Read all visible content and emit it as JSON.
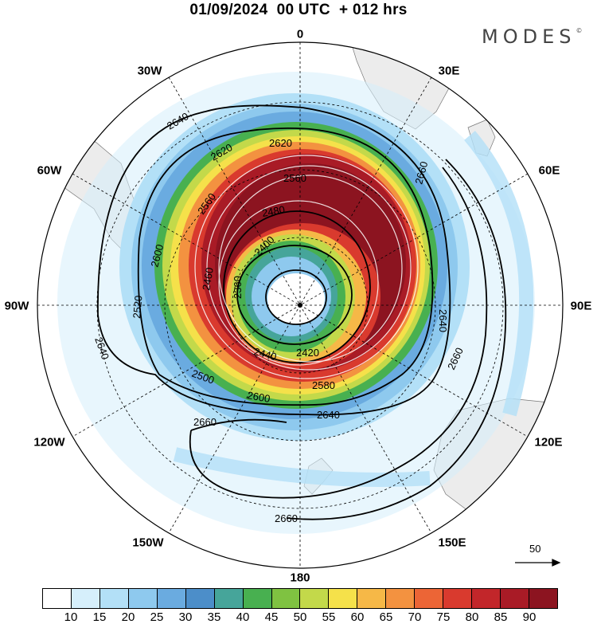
{
  "title": "01/09/2024  00 UTC  + 012 hrs",
  "brand": "MODES",
  "brand_mark": "©",
  "longitude_labels": [
    {
      "text": "0",
      "lon": 0
    },
    {
      "text": "30E",
      "lon": 30
    },
    {
      "text": "60E",
      "lon": 60
    },
    {
      "text": "90E",
      "lon": 90
    },
    {
      "text": "120E",
      "lon": 120
    },
    {
      "text": "150E",
      "lon": 150
    },
    {
      "text": "180",
      "lon": 180
    },
    {
      "text": "150W",
      "lon": -150
    },
    {
      "text": "120W",
      "lon": -120
    },
    {
      "text": "90W",
      "lon": -90
    },
    {
      "text": "60W",
      "lon": -60
    },
    {
      "text": "30W",
      "lon": -30
    }
  ],
  "contour_labels": [
    "2640",
    "2620",
    "2620",
    "2560",
    "2660",
    "2600",
    "2560",
    "2480",
    "2400",
    "2360",
    "2460",
    "2520",
    "2640",
    "2640",
    "2440",
    "2420",
    "2500",
    "2600",
    "2580",
    "2640",
    "2660",
    "2660",
    "2660"
  ],
  "colorbar": {
    "labels": [
      "10",
      "15",
      "20",
      "25",
      "30",
      "35",
      "40",
      "45",
      "50",
      "55",
      "60",
      "65",
      "70",
      "75",
      "80",
      "85",
      "90"
    ],
    "colors": [
      "#ffffff",
      "#d6effb",
      "#b3e0f7",
      "#8ec9ee",
      "#6aabe0",
      "#4c8ec9",
      "#46a59a",
      "#48b050",
      "#7fc241",
      "#c3d94a",
      "#f5e14a",
      "#f6b847",
      "#f39240",
      "#ec6536",
      "#d93a2e",
      "#c2262a",
      "#a91b26",
      "#8c1420"
    ]
  },
  "reference_vector": {
    "label": "50"
  }
}
